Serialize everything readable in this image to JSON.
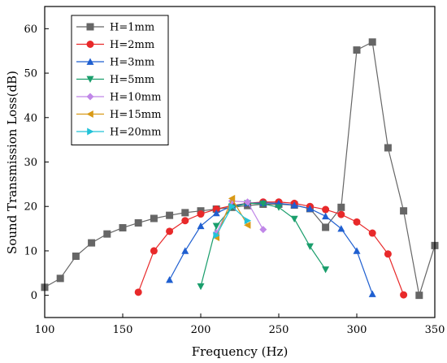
{
  "chart_data": {
    "type": "line",
    "title": "",
    "xlabel": "Frequency (Hz)",
    "ylabel": "Sound Transmission Loss(dB)",
    "xlim": [
      100,
      350
    ],
    "ylim": [
      -5,
      65
    ],
    "xticks": [
      100,
      150,
      200,
      250,
      300,
      350
    ],
    "yticks": [
      0,
      10,
      20,
      30,
      40,
      50,
      60
    ],
    "grid": false,
    "legend_position": "top-left",
    "series": [
      {
        "name": "H=1mm",
        "color": "#666666",
        "marker": "square",
        "x": [
          100,
          110,
          120,
          130,
          140,
          150,
          160,
          170,
          180,
          190,
          200,
          210,
          220,
          230,
          240,
          250,
          260,
          270,
          280,
          290,
          300,
          310,
          320,
          330,
          340,
          350
        ],
        "y": [
          1.8,
          3.8,
          8.8,
          11.8,
          13.8,
          15.2,
          16.3,
          17.3,
          18.0,
          18.6,
          19.0,
          19.4,
          19.8,
          20.2,
          20.5,
          20.5,
          20.3,
          19.5,
          15.3,
          19.8,
          55.2,
          57.0,
          33.2,
          19.0,
          0.0,
          11.2
        ]
      },
      {
        "name": "H=2mm",
        "color": "#e8292a",
        "marker": "circle",
        "x": [
          160,
          170,
          180,
          190,
          200,
          210,
          220,
          230,
          240,
          250,
          260,
          270,
          280,
          290,
          300,
          310,
          320,
          330
        ],
        "y": [
          0.7,
          10.0,
          14.4,
          16.8,
          18.3,
          19.4,
          20.2,
          20.7,
          21.0,
          21.0,
          20.7,
          20.0,
          19.3,
          18.2,
          16.5,
          14.0,
          9.3,
          0.1
        ]
      },
      {
        "name": "H=3mm",
        "color": "#1f5fd0",
        "marker": "triangle-up",
        "x": [
          180,
          190,
          200,
          210,
          220,
          230,
          240,
          250,
          260,
          270,
          280,
          290,
          300,
          310
        ],
        "y": [
          3.5,
          10.0,
          15.6,
          18.5,
          20.1,
          20.7,
          20.8,
          20.7,
          20.3,
          19.5,
          17.8,
          15.0,
          10.0,
          0.3
        ]
      },
      {
        "name": "H=5mm",
        "color": "#1a9e6c",
        "marker": "triangle-down",
        "x": [
          200,
          210,
          220,
          230,
          240,
          250,
          260,
          270,
          280
        ],
        "y": [
          2.0,
          15.6,
          19.8,
          20.7,
          20.6,
          19.8,
          17.2,
          11.0,
          5.8
        ]
      },
      {
        "name": "H=10mm",
        "color": "#c087e8",
        "marker": "diamond",
        "x": [
          210,
          220,
          230,
          240
        ],
        "y": [
          14.0,
          21.2,
          21.0,
          14.8
        ]
      },
      {
        "name": "H=15mm",
        "color": "#d99a16",
        "marker": "triangle-left",
        "x": [
          210,
          220,
          230
        ],
        "y": [
          13.0,
          21.8,
          15.8
        ]
      },
      {
        "name": "H=20mm",
        "color": "#22c2d8",
        "marker": "triangle-right",
        "x": [
          210,
          220,
          230
        ],
        "y": [
          13.5,
          20.0,
          16.8
        ]
      }
    ]
  }
}
